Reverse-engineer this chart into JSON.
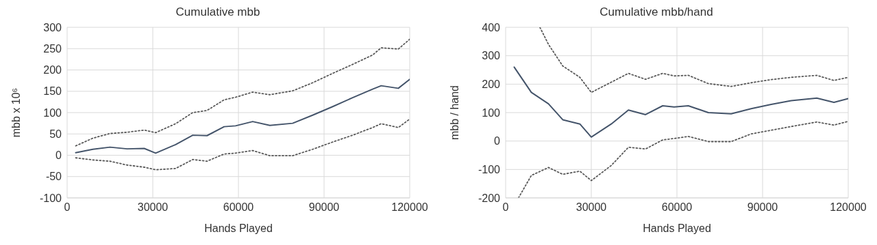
{
  "chart_data": [
    {
      "type": "line",
      "title": "Cumulative mbb",
      "xlabel": "Hands Played",
      "ylabel": "mbb  x 10⁶",
      "xlim": [
        0,
        120000
      ],
      "xticks": [
        0,
        30000,
        60000,
        90000,
        120000
      ],
      "ylim": [
        -100,
        300
      ],
      "yticks": [
        -100,
        -50,
        0,
        50,
        100,
        150,
        200,
        250,
        300
      ],
      "grid": true,
      "legend": false,
      "series": [
        {
          "color": "#44546a",
          "line_style": "solid",
          "x": [
            3000,
            9000,
            15000,
            21000,
            27000,
            31000,
            38000,
            44000,
            49000,
            55000,
            59000,
            65000,
            71000,
            79000,
            86000,
            93000,
            100000,
            107000,
            110000,
            116000,
            120000
          ],
          "values": [
            6,
            14,
            19,
            15,
            16,
            5,
            25,
            47,
            46,
            67,
            69,
            79,
            70,
            75,
            94,
            114,
            135,
            155,
            163,
            157,
            178
          ]
        },
        {
          "color": "#595959",
          "line_style": "dotted",
          "x": [
            3000,
            9000,
            15000,
            21000,
            27000,
            31000,
            38000,
            44000,
            49000,
            55000,
            59000,
            65000,
            71000,
            79000,
            86000,
            93000,
            100000,
            107000,
            110000,
            116000,
            120000
          ],
          "values": [
            22,
            40,
            51,
            54,
            59,
            53,
            74,
            100,
            105,
            130,
            136,
            148,
            142,
            151,
            170,
            192,
            213,
            235,
            252,
            249,
            272
          ]
        },
        {
          "color": "#595959",
          "line_style": "dotted",
          "x": [
            3000,
            9000,
            15000,
            21000,
            27000,
            31000,
            38000,
            44000,
            49000,
            55000,
            59000,
            65000,
            71000,
            79000,
            86000,
            93000,
            100000,
            107000,
            110000,
            116000,
            120000
          ],
          "values": [
            -6,
            -11,
            -14,
            -23,
            -28,
            -34,
            -31,
            -10,
            -14,
            3,
            5,
            11,
            -1,
            -1,
            14,
            31,
            47,
            65,
            74,
            65,
            85
          ]
        }
      ]
    },
    {
      "type": "line",
      "title": "Cumulative mbb/hand",
      "xlabel": "Hands Played",
      "ylabel": "mbb / hand",
      "xlim": [
        0,
        120000
      ],
      "xticks": [
        0,
        30000,
        60000,
        90000,
        120000
      ],
      "ylim": [
        -200,
        400
      ],
      "yticks": [
        -200,
        -100,
        0,
        100,
        200,
        300,
        400
      ],
      "grid": true,
      "legend": false,
      "series": [
        {
          "color": "#44546a",
          "line_style": "solid",
          "x": [
            3000,
            9000,
            15000,
            20000,
            26000,
            30000,
            37000,
            43000,
            49000,
            55000,
            59000,
            64000,
            71000,
            79000,
            86000,
            93000,
            100000,
            109000,
            115000,
            120000
          ],
          "values": [
            260,
            171,
            131,
            75,
            60,
            14,
            60,
            109,
            93,
            124,
            120,
            124,
            100,
            96,
            114,
            129,
            142,
            151,
            136,
            149
          ]
        },
        {
          "color": "#595959",
          "line_style": "dotted",
          "x": [
            12000,
            15000,
            20000,
            26000,
            30000,
            37000,
            43000,
            49000,
            55000,
            59000,
            64000,
            71000,
            79000,
            86000,
            93000,
            100000,
            109000,
            115000,
            120000
          ],
          "values": [
            400,
            340,
            264,
            224,
            171,
            207,
            238,
            217,
            238,
            229,
            231,
            202,
            192,
            205,
            216,
            224,
            231,
            213,
            224
          ]
        },
        {
          "color": "#595959",
          "line_style": "dotted",
          "x": [
            4500,
            9000,
            15000,
            20000,
            26000,
            30000,
            37000,
            43000,
            49000,
            55000,
            59000,
            64000,
            71000,
            79000,
            86000,
            93000,
            100000,
            109000,
            115000,
            120000
          ],
          "values": [
            -200,
            -121,
            -93,
            -117,
            -106,
            -139,
            -86,
            -22,
            -28,
            4,
            9,
            16,
            -2,
            -2,
            25,
            38,
            51,
            67,
            56,
            69
          ]
        }
      ]
    }
  ]
}
